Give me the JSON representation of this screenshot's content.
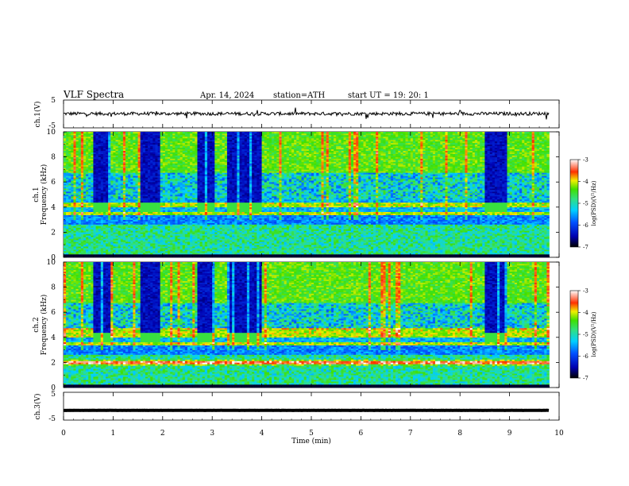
{
  "header": {
    "title": "VLF  Spectra",
    "date": "Apr. 14, 2024",
    "station": "station=ATH",
    "start": "start  UT  =    19: 20: 1"
  },
  "chart_data": [
    {
      "type": "line",
      "panel": "ch1-waveform",
      "ylabel": "ch.1(V)",
      "ylim": [
        -5,
        5
      ],
      "yticks": [
        "5",
        "-5"
      ],
      "x_range_min": [
        0,
        9.8
      ],
      "baseline_v": 0.1,
      "color": "#000000"
    },
    {
      "type": "heatmap",
      "panel": "ch1-spectrogram",
      "ylabel_top": "ch.1",
      "ylabel": "Frequency  (kHz)",
      "ylim": [
        0,
        10
      ],
      "yticks": [
        "0",
        "2",
        "4",
        "6",
        "8",
        "10"
      ],
      "x_range_min": [
        0,
        9.8
      ],
      "colorbar": {
        "label": "log(PSD)(V²/Hz)",
        "range": [
          -7,
          -3
        ],
        "ticks": [
          "-3",
          "-4",
          "-5",
          "-6",
          "-7"
        ]
      },
      "noise_bands_khz": [
        3.5,
        4.2
      ],
      "quiet_intervals_min": [
        [
          0.6,
          0.95
        ],
        [
          1.55,
          1.95
        ],
        [
          2.7,
          3.0
        ],
        [
          3.3,
          3.95
        ],
        [
          8.5,
          8.95
        ]
      ]
    },
    {
      "type": "heatmap",
      "panel": "ch2-spectrogram",
      "ylabel_top": "ch.2",
      "ylabel": "Frequency  (kHz)",
      "ylim": [
        0,
        10
      ],
      "yticks": [
        "0",
        "2",
        "4",
        "6",
        "8",
        "10"
      ],
      "x_range_min": [
        0,
        9.8
      ],
      "colorbar": {
        "label": "log(PSD)(V²/Hz)",
        "range": [
          -7,
          -3
        ],
        "ticks": [
          "-3",
          "-4",
          "-5",
          "-6",
          "-7"
        ]
      },
      "noise_bands_khz": [
        2.0,
        3.5,
        4.2,
        4.6
      ],
      "quiet_intervals_min": [
        [
          0.6,
          0.95
        ],
        [
          1.55,
          1.95
        ],
        [
          2.7,
          3.0
        ],
        [
          3.3,
          3.95
        ],
        [
          8.5,
          8.95
        ]
      ]
    },
    {
      "type": "line",
      "panel": "ch3-waveform",
      "ylabel": "ch.3(V)",
      "ylim": [
        -5,
        5
      ],
      "yticks": [
        "5",
        "-5"
      ],
      "x_range_min": [
        0,
        9.8
      ],
      "baseline_v": -1.5,
      "color": "#000000"
    }
  ],
  "x_axis": {
    "label": "Time  (min)",
    "range": [
      0,
      10
    ],
    "ticks": [
      "0",
      "1",
      "2",
      "3",
      "4",
      "5",
      "6",
      "7",
      "8",
      "9",
      "10"
    ]
  }
}
